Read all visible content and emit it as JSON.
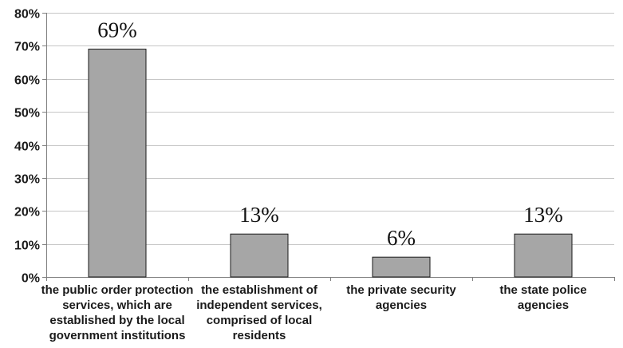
{
  "chart_data": {
    "type": "bar",
    "title": "",
    "xlabel": "",
    "ylabel": "",
    "ylim": [
      0,
      80
    ],
    "yticks": [
      0,
      10,
      20,
      30,
      40,
      50,
      60,
      70,
      80
    ],
    "ytick_labels": [
      "0%",
      "10%",
      "20%",
      "30%",
      "40%",
      "50%",
      "60%",
      "70%",
      "80%"
    ],
    "grid": true,
    "legend": "none",
    "categories": [
      [
        "the public order protection",
        "services, which are",
        "established by the local",
        "government institutions"
      ],
      [
        "the establishment of",
        "independent services,",
        "comprised of local",
        "residents"
      ],
      [
        "the private security",
        "agencies"
      ],
      [
        "the state police",
        "agencies"
      ]
    ],
    "values": [
      69,
      13,
      6,
      13
    ],
    "data_labels": [
      "69%",
      "13%",
      "6%",
      "13%"
    ],
    "colors": {
      "bar_fill": "#a6a6a6",
      "bar_stroke": "#1a1a1a",
      "grid": "#c6c6c6",
      "axis": "#7f7f7f",
      "text": "#1a1a1a"
    }
  }
}
